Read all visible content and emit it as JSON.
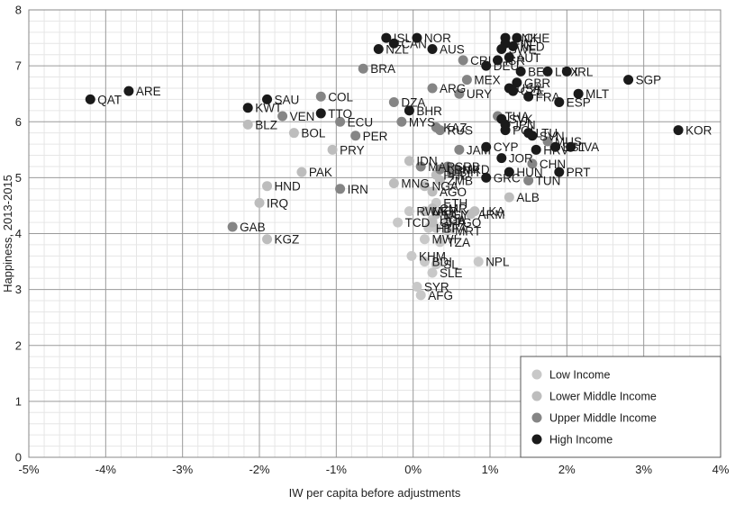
{
  "chart_data": {
    "type": "scatter",
    "title": "",
    "xlabel": "IW per capita before adjustments",
    "ylabel": "Happiness, 2013-2015",
    "xlim": [
      -0.05,
      0.04
    ],
    "ylim": [
      0,
      8
    ],
    "x_ticks": [
      -0.05,
      -0.04,
      -0.03,
      -0.02,
      -0.01,
      0,
      0.01,
      0.02,
      0.03,
      0.04
    ],
    "x_tick_labels": [
      "-5%",
      "-4%",
      "-3%",
      "-2%",
      "-1%",
      "0%",
      "1%",
      "2%",
      "3%",
      "4%"
    ],
    "y_ticks": [
      0,
      1,
      2,
      3,
      4,
      5,
      6,
      7,
      8
    ],
    "y_tick_labels": [
      "0",
      "1",
      "2",
      "3",
      "4",
      "5",
      "6",
      "7",
      "8"
    ],
    "grid": "major and minor",
    "legend_position": "bottom-right",
    "colors": {
      "Low Income": "#c8c8c8",
      "Lower Middle Income": "#bdbdbd",
      "Upper Middle Income": "#858585",
      "High Income": "#1a1a1a"
    },
    "series": [
      {
        "name": "Low Income",
        "points": [
          {
            "label": "AFG",
            "x": 0.001,
            "y": 2.9
          },
          {
            "label": "SYR",
            "x": 0.0005,
            "y": 3.05
          },
          {
            "label": "SLE",
            "x": 0.0025,
            "y": 3.3
          },
          {
            "label": "SL",
            "x": 0.003,
            "y": 3.45
          },
          {
            "label": "BDI",
            "x": 0.0015,
            "y": 3.5
          },
          {
            "label": "KHM",
            "x": -0.0002,
            "y": 3.6
          },
          {
            "label": "MWI",
            "x": 0.0015,
            "y": 3.9
          },
          {
            "label": "TZA",
            "x": 0.0035,
            "y": 3.85
          },
          {
            "label": "NPL",
            "x": 0.0085,
            "y": 3.5
          },
          {
            "label": "RWA",
            "x": -0.0005,
            "y": 4.4
          },
          {
            "label": "ETH",
            "x": 0.003,
            "y": 4.55
          },
          {
            "label": "NER",
            "x": 0.0015,
            "y": 4.4
          },
          {
            "label": "MLI",
            "x": 0.003,
            "y": 4.35
          },
          {
            "label": "MRT",
            "x": 0.0045,
            "y": 4.05
          },
          {
            "label": "HTI",
            "x": 0.002,
            "y": 4.1
          },
          {
            "label": "UGA",
            "x": 0.0025,
            "y": 4.25
          },
          {
            "label": "TGO",
            "x": 0.0045,
            "y": 4.2
          },
          {
            "label": "TCD",
            "x": -0.002,
            "y": 4.2
          },
          {
            "label": "BFA",
            "x": 0.003,
            "y": 4.1
          }
        ]
      },
      {
        "name": "Lower Middle Income",
        "points": [
          {
            "label": "HND",
            "x": -0.019,
            "y": 4.85
          },
          {
            "label": "IRQ",
            "x": -0.02,
            "y": 4.55
          },
          {
            "label": "KGZ",
            "x": -0.019,
            "y": 3.9
          },
          {
            "label": "PAK",
            "x": -0.0145,
            "y": 5.1
          },
          {
            "label": "BLZ",
            "x": -0.0215,
            "y": 5.95
          },
          {
            "label": "BOL",
            "x": -0.0155,
            "y": 5.8
          },
          {
            "label": "PRY",
            "x": -0.0105,
            "y": 5.5
          },
          {
            "label": "MNG",
            "x": -0.0025,
            "y": 4.9
          },
          {
            "label": "IDN",
            "x": -0.0005,
            "y": 5.3
          },
          {
            "label": "NGA",
            "x": 0.0015,
            "y": 4.85
          },
          {
            "label": "PHL",
            "x": 0.003,
            "y": 5.05
          },
          {
            "label": "LKA",
            "x": 0.008,
            "y": 4.4
          },
          {
            "label": "ARM",
            "x": 0.0075,
            "y": 4.35
          },
          {
            "label": "ALB",
            "x": 0.0125,
            "y": 4.65
          },
          {
            "label": "AGO",
            "x": 0.0025,
            "y": 4.75
          },
          {
            "label": "CMR",
            "x": 0.0025,
            "y": 4.45
          },
          {
            "label": "EGY",
            "x": 0.003,
            "y": 4.35
          },
          {
            "label": "ZMB",
            "x": 0.0035,
            "y": 4.95
          },
          {
            "label": "UKR",
            "x": 0.0015,
            "y": 4.4
          },
          {
            "label": "GHA",
            "x": 0.0025,
            "y": 4.2
          }
        ]
      },
      {
        "name": "Upper Middle Income",
        "points": [
          {
            "label": "GAB",
            "x": -0.0235,
            "y": 4.12
          },
          {
            "label": "IRN",
            "x": -0.0095,
            "y": 4.8
          },
          {
            "label": "PER",
            "x": -0.0075,
            "y": 5.75
          },
          {
            "label": "ECU",
            "x": -0.0095,
            "y": 6.0
          },
          {
            "label": "VEN",
            "x": -0.017,
            "y": 6.1
          },
          {
            "label": "COL",
            "x": -0.012,
            "y": 6.45
          },
          {
            "label": "BRA",
            "x": -0.0065,
            "y": 6.95
          },
          {
            "label": "DZA",
            "x": -0.0025,
            "y": 6.35
          },
          {
            "label": "ARG",
            "x": 0.0025,
            "y": 6.6
          },
          {
            "label": "URY",
            "x": 0.006,
            "y": 6.5
          },
          {
            "label": "MEX",
            "x": 0.007,
            "y": 6.75
          },
          {
            "label": "CRI",
            "x": 0.0065,
            "y": 7.1
          },
          {
            "label": "MYS",
            "x": -0.0015,
            "y": 6.0
          },
          {
            "label": "KAZ",
            "x": 0.003,
            "y": 5.9
          },
          {
            "label": "RUS",
            "x": 0.0035,
            "y": 5.85
          },
          {
            "label": "MAR",
            "x": 0.001,
            "y": 5.2
          },
          {
            "label": "MUS",
            "x": 0.0175,
            "y": 5.65
          },
          {
            "label": "CHN",
            "x": 0.0155,
            "y": 5.25
          },
          {
            "label": "TUN",
            "x": 0.015,
            "y": 4.95
          },
          {
            "label": "JAM",
            "x": 0.006,
            "y": 5.5
          },
          {
            "label": "SRB",
            "x": 0.0045,
            "y": 5.2
          },
          {
            "label": "MKD",
            "x": 0.0055,
            "y": 5.15
          },
          {
            "label": "THA",
            "x": 0.011,
            "y": 6.1
          },
          {
            "label": "LBN",
            "x": 0.0035,
            "y": 5.15
          },
          {
            "label": "BIH",
            "x": 0.005,
            "y": 5.1
          }
        ]
      },
      {
        "name": "High Income",
        "points": [
          {
            "label": "QAT",
            "x": -0.042,
            "y": 6.4
          },
          {
            "label": "ARE",
            "x": -0.037,
            "y": 6.55
          },
          {
            "label": "KWT",
            "x": -0.0215,
            "y": 6.25
          },
          {
            "label": "SAU",
            "x": -0.019,
            "y": 6.4
          },
          {
            "label": "TTO",
            "x": -0.012,
            "y": 6.15
          },
          {
            "label": "BHR",
            "x": -0.0005,
            "y": 6.2
          },
          {
            "label": "ISL",
            "x": -0.0035,
            "y": 7.5
          },
          {
            "label": "NZL",
            "x": -0.0045,
            "y": 7.3
          },
          {
            "label": "CAN",
            "x": -0.0025,
            "y": 7.4
          },
          {
            "label": "NOR",
            "x": 0.0005,
            "y": 7.5
          },
          {
            "label": "AUS",
            "x": 0.0025,
            "y": 7.3
          },
          {
            "label": "DNK",
            "x": 0.012,
            "y": 7.5
          },
          {
            "label": "CHE",
            "x": 0.0135,
            "y": 7.5
          },
          {
            "label": "FIN",
            "x": 0.012,
            "y": 7.4
          },
          {
            "label": "NLD",
            "x": 0.013,
            "y": 7.35
          },
          {
            "label": "SWE",
            "x": 0.0115,
            "y": 7.3
          },
          {
            "label": "AUT",
            "x": 0.0125,
            "y": 7.15
          },
          {
            "label": "ISR",
            "x": 0.011,
            "y": 7.1
          },
          {
            "label": "DEU",
            "x": 0.0095,
            "y": 7.0
          },
          {
            "label": "BEL",
            "x": 0.014,
            "y": 6.9
          },
          {
            "label": "LUX",
            "x": 0.0175,
            "y": 6.9
          },
          {
            "label": "IRL",
            "x": 0.02,
            "y": 6.9
          },
          {
            "label": "GBR",
            "x": 0.0135,
            "y": 6.7
          },
          {
            "label": "USA",
            "x": 0.0125,
            "y": 6.6
          },
          {
            "label": "CZE",
            "x": 0.013,
            "y": 6.55
          },
          {
            "label": "FRA",
            "x": 0.015,
            "y": 6.45
          },
          {
            "label": "SGP",
            "x": 0.028,
            "y": 6.75
          },
          {
            "label": "MLT",
            "x": 0.0215,
            "y": 6.5
          },
          {
            "label": "ESP",
            "x": 0.019,
            "y": 6.35
          },
          {
            "label": "KOR",
            "x": 0.0345,
            "y": 5.85
          },
          {
            "label": "SVK",
            "x": 0.0115,
            "y": 6.05
          },
          {
            "label": "JPN",
            "x": 0.012,
            "y": 5.95
          },
          {
            "label": "POL",
            "x": 0.012,
            "y": 5.85
          },
          {
            "label": "LTU",
            "x": 0.015,
            "y": 5.8
          },
          {
            "label": "SVN",
            "x": 0.0155,
            "y": 5.75
          },
          {
            "label": "EST",
            "x": 0.0185,
            "y": 5.55
          },
          {
            "label": "LVA",
            "x": 0.0205,
            "y": 5.55
          },
          {
            "label": "HRV",
            "x": 0.016,
            "y": 5.5
          },
          {
            "label": "CYP",
            "x": 0.0095,
            "y": 5.55
          },
          {
            "label": "JOR",
            "x": 0.0115,
            "y": 5.35
          },
          {
            "label": "PRT",
            "x": 0.019,
            "y": 5.1
          },
          {
            "label": "HUN",
            "x": 0.0125,
            "y": 5.1
          },
          {
            "label": "GRC",
            "x": 0.0095,
            "y": 5.0
          }
        ]
      }
    ]
  }
}
